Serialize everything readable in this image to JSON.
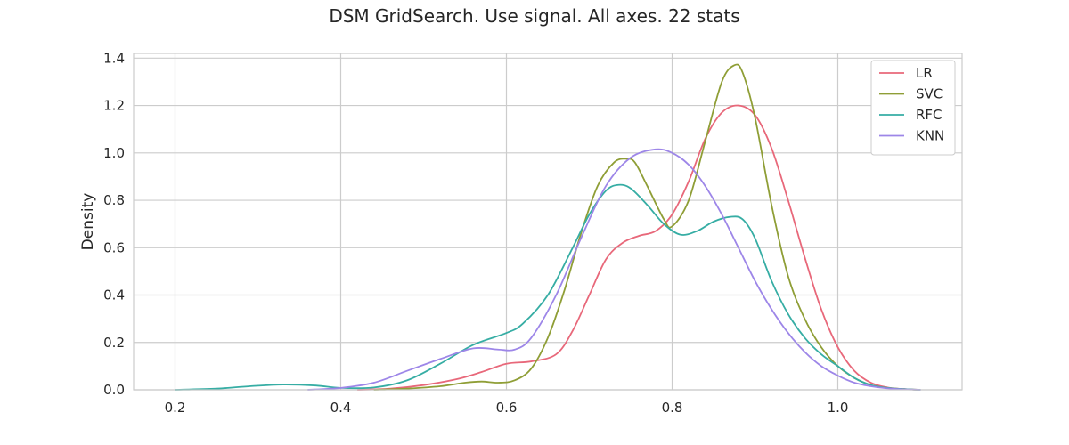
{
  "chart_data": {
    "type": "line",
    "title": "DSM GridSearch. Use signal. All axes. 22 stats",
    "xlabel": "",
    "ylabel": "Density",
    "xlim": [
      0.15,
      1.15
    ],
    "ylim": [
      0,
      1.42
    ],
    "xticks": [
      0.2,
      0.4,
      0.6,
      0.8,
      1.0
    ],
    "xtick_labels": [
      "0.2",
      "0.4",
      "0.6",
      "0.8",
      "1.0"
    ],
    "yticks": [
      0.0,
      0.2,
      0.4,
      0.6,
      0.8,
      1.0,
      1.2,
      1.4
    ],
    "ytick_labels": [
      "0.0",
      "0.2",
      "0.4",
      "0.6",
      "0.8",
      "1.0",
      "1.2",
      "1.4"
    ],
    "grid": true,
    "legend_position": "top-right",
    "series": [
      {
        "name": "LR",
        "color": "#e8687a",
        "x": [
          0.42,
          0.46,
          0.5,
          0.54,
          0.57,
          0.6,
          0.63,
          0.66,
          0.68,
          0.7,
          0.72,
          0.74,
          0.76,
          0.78,
          0.8,
          0.82,
          0.84,
          0.86,
          0.88,
          0.9,
          0.92,
          0.94,
          0.96,
          0.98,
          1.0,
          1.02,
          1.04,
          1.06,
          1.08,
          1.1
        ],
        "y": [
          0.0,
          0.005,
          0.02,
          0.045,
          0.075,
          0.11,
          0.12,
          0.15,
          0.25,
          0.4,
          0.55,
          0.62,
          0.65,
          0.67,
          0.74,
          0.88,
          1.06,
          1.17,
          1.2,
          1.16,
          1.02,
          0.8,
          0.56,
          0.34,
          0.18,
          0.08,
          0.03,
          0.01,
          0.003,
          0.0
        ]
      },
      {
        "name": "SVC",
        "color": "#8f9e36",
        "x": [
          0.44,
          0.48,
          0.52,
          0.55,
          0.57,
          0.59,
          0.61,
          0.63,
          0.65,
          0.67,
          0.69,
          0.71,
          0.73,
          0.745,
          0.755,
          0.77,
          0.79,
          0.8,
          0.82,
          0.84,
          0.86,
          0.875,
          0.885,
          0.9,
          0.92,
          0.94,
          0.96,
          0.98,
          1.0,
          1.02,
          1.04,
          1.06,
          1.08,
          1.1
        ],
        "y": [
          0.0,
          0.005,
          0.015,
          0.03,
          0.035,
          0.03,
          0.04,
          0.09,
          0.22,
          0.42,
          0.66,
          0.86,
          0.96,
          0.975,
          0.96,
          0.86,
          0.72,
          0.69,
          0.8,
          1.05,
          1.3,
          1.37,
          1.34,
          1.15,
          0.78,
          0.48,
          0.3,
          0.18,
          0.1,
          0.05,
          0.02,
          0.008,
          0.003,
          0.0
        ]
      },
      {
        "name": "RFC",
        "color": "#36ada4",
        "x": [
          0.2,
          0.25,
          0.29,
          0.33,
          0.37,
          0.4,
          0.44,
          0.48,
          0.52,
          0.56,
          0.6,
          0.62,
          0.65,
          0.68,
          0.7,
          0.72,
          0.735,
          0.75,
          0.77,
          0.79,
          0.81,
          0.83,
          0.85,
          0.87,
          0.885,
          0.9,
          0.92,
          0.94,
          0.96,
          0.98,
          1.0,
          1.02,
          1.04,
          1.06,
          1.08,
          1.1
        ],
        "y": [
          0.0,
          0.005,
          0.015,
          0.022,
          0.018,
          0.008,
          0.01,
          0.04,
          0.11,
          0.19,
          0.24,
          0.28,
          0.4,
          0.6,
          0.74,
          0.84,
          0.865,
          0.85,
          0.78,
          0.7,
          0.655,
          0.67,
          0.71,
          0.73,
          0.72,
          0.64,
          0.46,
          0.32,
          0.22,
          0.15,
          0.1,
          0.05,
          0.02,
          0.008,
          0.003,
          0.0
        ]
      },
      {
        "name": "KNN",
        "color": "#9d86e8",
        "x": [
          0.36,
          0.4,
          0.44,
          0.48,
          0.52,
          0.56,
          0.59,
          0.61,
          0.63,
          0.66,
          0.69,
          0.72,
          0.75,
          0.78,
          0.8,
          0.82,
          0.84,
          0.86,
          0.88,
          0.9,
          0.92,
          0.94,
          0.96,
          0.98,
          1.0,
          1.02,
          1.04,
          1.06,
          1.08,
          1.1
        ],
        "y": [
          0.0,
          0.008,
          0.03,
          0.08,
          0.13,
          0.175,
          0.17,
          0.17,
          0.22,
          0.4,
          0.64,
          0.86,
          0.98,
          1.015,
          1.0,
          0.95,
          0.86,
          0.74,
          0.6,
          0.46,
          0.34,
          0.24,
          0.16,
          0.1,
          0.06,
          0.03,
          0.015,
          0.006,
          0.002,
          0.0
        ]
      }
    ]
  }
}
